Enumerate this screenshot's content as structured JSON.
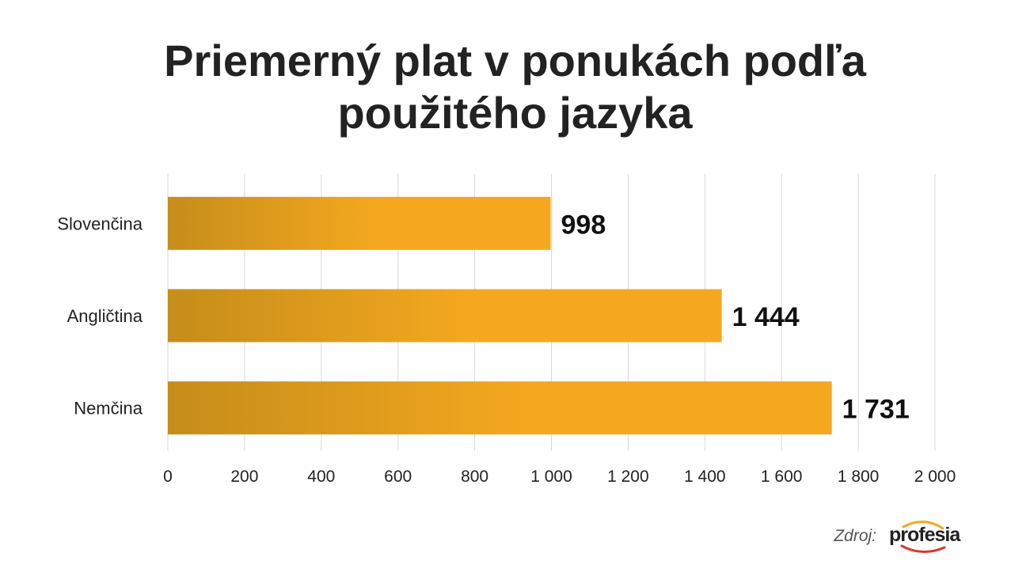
{
  "chart_data": {
    "type": "bar",
    "orientation": "horizontal",
    "title": "Priemerný plat v ponukách podľa použitého jazyka",
    "title_lines": [
      "Priemerný plat v ponukách podľa",
      "použitého jazyka"
    ],
    "categories": [
      "Slovenčina",
      "Angličtina",
      "Nemčina"
    ],
    "values": [
      998,
      1444,
      1731
    ],
    "value_labels": [
      "998",
      "1 444",
      "1 731"
    ],
    "xlim": [
      0,
      2000
    ],
    "x_ticks": [
      0,
      200,
      400,
      600,
      800,
      1000,
      1200,
      1400,
      1600,
      1800,
      2000
    ],
    "x_tick_labels": [
      "0",
      "200",
      "400",
      "600",
      "800",
      "1 000",
      "1 200",
      "1 400",
      "1 600",
      "1 800",
      "2 000"
    ],
    "grid": true,
    "legend": "none",
    "colors": {
      "bar_start": "#c58d1a",
      "bar_end": "#f5a81f",
      "grid": "#d9d9d9",
      "text": "#222222"
    }
  },
  "footer": {
    "source_label": "Zdroj:",
    "logo_text": "profesia",
    "logo_colors": [
      "#f5a81f",
      "#e5322d"
    ]
  }
}
